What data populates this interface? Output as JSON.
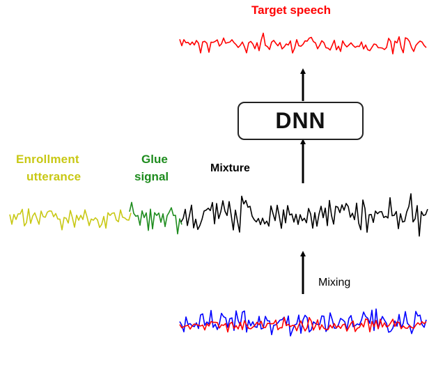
{
  "labels": {
    "target_speech": "Target speech",
    "enrollment_line1": "Enrollment",
    "enrollment_line2": "utterance",
    "glue_line1": "Glue",
    "glue_line2": "signal",
    "mixture": "Mixture",
    "mixing": "Mixing",
    "dnn": "DNN"
  },
  "colors": {
    "target": "#ff0000",
    "enrollment": "#c8c814",
    "glue": "#1e8c1e",
    "mixture": "#000000",
    "interference": "#0000ff",
    "text": "#000000"
  }
}
